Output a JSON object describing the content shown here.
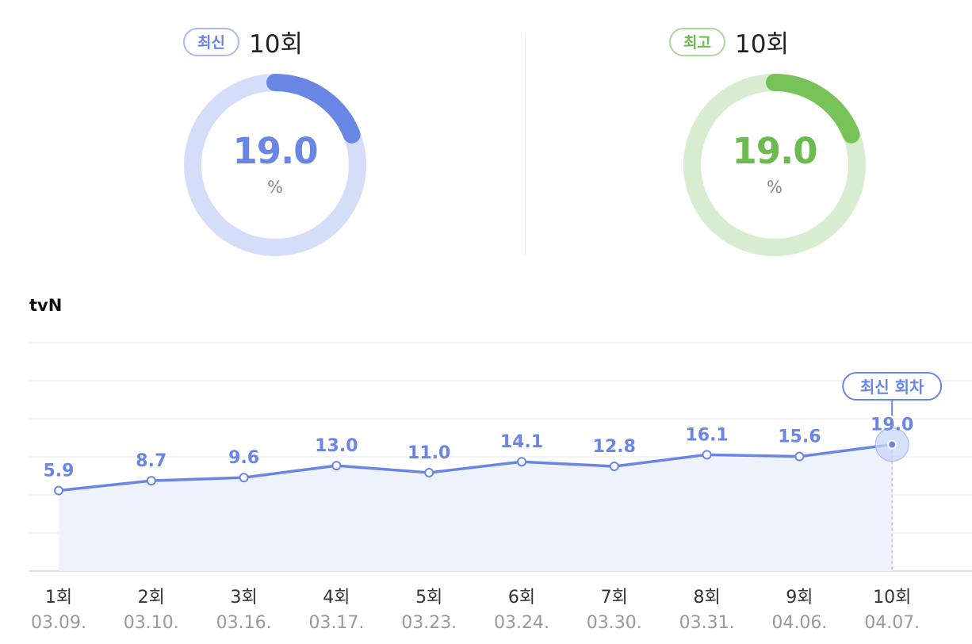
{
  "latest": {
    "badge": "최신",
    "episode": "10회",
    "value": "19.0",
    "unit": "%",
    "fraction": 0.19,
    "color": "#6a86e4",
    "track": "#d5def8"
  },
  "best": {
    "badge": "최고",
    "episode": "10회",
    "value": "19.0",
    "unit": "%",
    "fraction": 0.19,
    "color": "#78c25a",
    "track": "#d8ecd0"
  },
  "channel": "tvN",
  "chart_data": {
    "type": "area",
    "categories": [
      "1회",
      "2회",
      "3회",
      "4회",
      "5회",
      "6회",
      "7회",
      "8회",
      "9회",
      "10회"
    ],
    "dates": [
      "03.09.",
      "03.10.",
      "03.16.",
      "03.17.",
      "03.23.",
      "03.24.",
      "03.30.",
      "03.31.",
      "04.06.",
      "04.07."
    ],
    "values": [
      5.9,
      8.7,
      9.6,
      13.0,
      11.0,
      14.1,
      12.8,
      16.1,
      15.6,
      19.0
    ],
    "labels": [
      "5.9",
      "8.7",
      "9.6",
      "13.0",
      "11.0",
      "14.1",
      "12.8",
      "16.1",
      "15.6",
      "19.0"
    ],
    "highlight_index": 9,
    "highlight_label": "최신 회차",
    "line_color": "#6a86e4",
    "fill_color": "#eef2fd",
    "ylim": [
      -17,
      48
    ],
    "grid": true
  }
}
